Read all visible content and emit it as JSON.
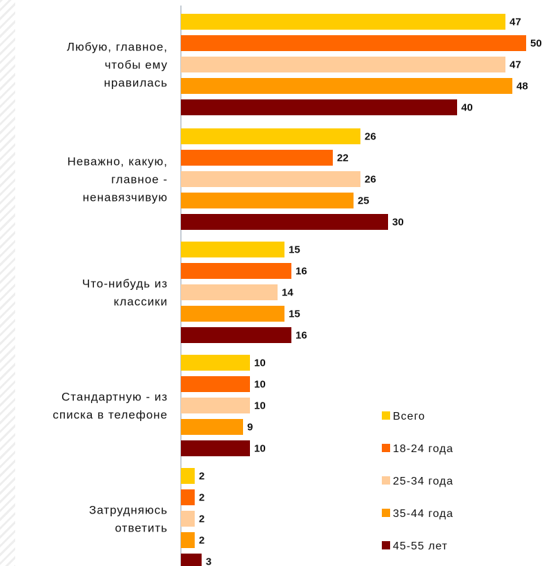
{
  "chart_data": {
    "type": "bar",
    "orientation": "horizontal",
    "categories": [
      [
        "Любую, главное,",
        "чтобы ему",
        "нравилась"
      ],
      [
        "Неважно, какую,",
        "главное -",
        "ненавязчивую"
      ],
      [
        "Что-нибудь из",
        "классики"
      ],
      [
        "Стандартную - из",
        "списка в телефоне"
      ],
      [
        "Затрудняюсь",
        "ответить"
      ]
    ],
    "series": [
      {
        "name": "Всего",
        "color": "#FFCC00",
        "values": [
          47,
          26,
          15,
          10,
          2
        ]
      },
      {
        "name": "18-24 года",
        "color": "#FF6600",
        "values": [
          50,
          22,
          16,
          10,
          2
        ]
      },
      {
        "name": "25-34 года",
        "color": "#FFCC99",
        "values": [
          47,
          26,
          14,
          10,
          2
        ]
      },
      {
        "name": "35-44 года",
        "color": "#FF9900",
        "values": [
          48,
          25,
          15,
          9,
          2
        ]
      },
      {
        "name": "45-55 лет",
        "color": "#800000",
        "values": [
          40,
          30,
          16,
          10,
          3
        ]
      }
    ],
    "xlim": [
      0,
      50
    ],
    "grid": false,
    "legend_position": "bottom-right",
    "title": "",
    "xlabel": "",
    "ylabel": ""
  }
}
